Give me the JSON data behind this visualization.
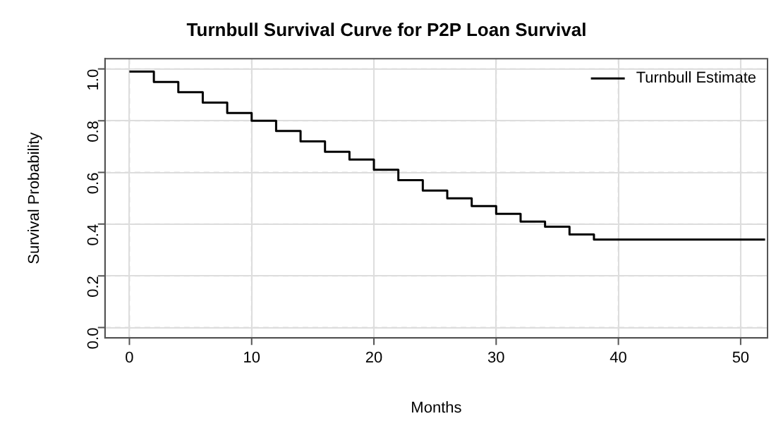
{
  "chart_data": {
    "type": "step",
    "title": "Turnbull Survival Curve for P2P Loan Survival",
    "xlabel": "Months",
    "ylabel": "Survival Probability",
    "x": [
      0,
      2,
      4,
      6,
      8,
      10,
      12,
      14,
      16,
      18,
      20,
      22,
      24,
      26,
      28,
      30,
      32,
      34,
      36,
      38,
      52
    ],
    "series": [
      {
        "name": "Turnbull Estimate",
        "color": "#000000",
        "values": [
          0.99,
          0.95,
          0.91,
          0.87,
          0.83,
          0.8,
          0.76,
          0.72,
          0.68,
          0.65,
          0.61,
          0.57,
          0.53,
          0.5,
          0.47,
          0.44,
          0.41,
          0.39,
          0.36,
          0.34,
          0.34
        ]
      }
    ],
    "xlim": [
      -2,
      52.2
    ],
    "ylim": [
      -0.04,
      1.04
    ],
    "xticks": [
      0,
      10,
      20,
      30,
      40,
      50
    ],
    "yticks": [
      {
        "value": 0,
        "label": "0.0"
      },
      {
        "value": 0.2,
        "label": "0.2"
      },
      {
        "value": 0.4,
        "label": "0.4"
      },
      {
        "value": 0.6,
        "label": "0.6"
      },
      {
        "value": 0.8,
        "label": "0.8"
      },
      {
        "value": 1,
        "label": "1.0"
      }
    ],
    "grid": true,
    "legend": "top right",
    "line_style": "solid",
    "marker": "none"
  }
}
